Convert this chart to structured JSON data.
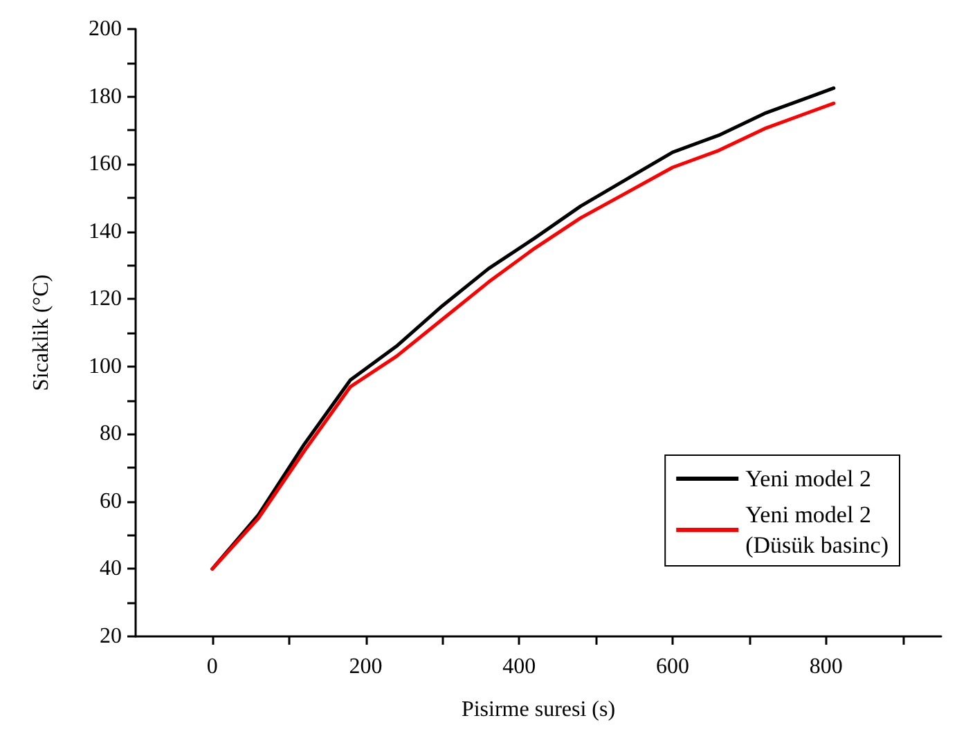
{
  "chart_data": {
    "type": "line",
    "xlabel": "Pisirme suresi (s)",
    "ylabel": "Sicaklik (°C)",
    "x": [
      0,
      60,
      120,
      180,
      240,
      300,
      360,
      420,
      480,
      540,
      600,
      660,
      720,
      780,
      810
    ],
    "series": [
      {
        "name": "Yeni model 2",
        "color": "#000000",
        "values": [
          40,
          56,
          77,
          96,
          106,
          118,
          129,
          138,
          147.5,
          155.5,
          163.5,
          168.5,
          175,
          180,
          182.5
        ]
      },
      {
        "name": "Yeni model 2\n(Düsük basinc)",
        "color": "#ff0000",
        "values": [
          40,
          55,
          75,
          94,
          103,
          114,
          125,
          135,
          144,
          151.5,
          159,
          164,
          170.5,
          175.5,
          178
        ]
      }
    ],
    "xlim": [
      -100,
      950
    ],
    "xticks": [
      0,
      {
        "value": 100,
        "label": null
      },
      200,
      {
        "value": 300,
        "label": null
      },
      400,
      {
        "value": 500,
        "label": null
      },
      600,
      {
        "value": 700,
        "label": null
      },
      800,
      {
        "value": 900,
        "label": null
      }
    ],
    "ylim": [
      20,
      200
    ],
    "yticks": [
      20,
      {
        "value": 30,
        "label": null
      },
      40,
      {
        "value": 50,
        "label": null
      },
      60,
      {
        "value": 70,
        "label": null
      },
      80,
      {
        "value": 90,
        "label": null
      },
      100,
      {
        "value": 110,
        "label": null
      },
      120,
      {
        "value": 130,
        "label": null
      },
      140,
      {
        "value": 150,
        "label": null
      },
      160,
      {
        "value": 170,
        "label": null
      },
      180,
      {
        "value": 190,
        "label": null
      },
      200
    ],
    "grid": false,
    "legend": "bottom right",
    "marker": "none",
    "line_style": "solid"
  }
}
